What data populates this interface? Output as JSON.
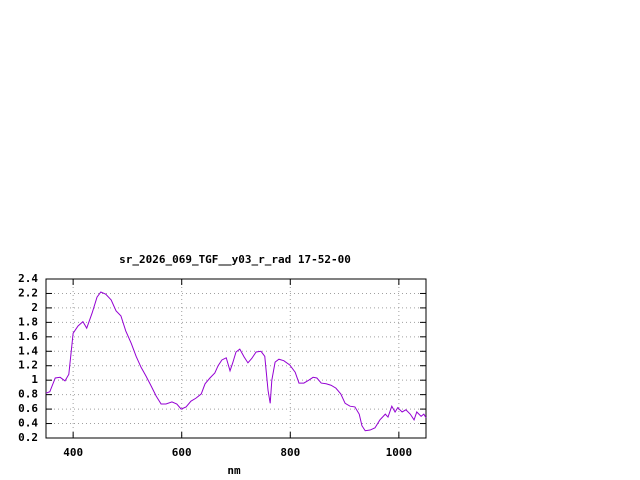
{
  "chart_data": {
    "type": "line",
    "title": "sr_2026_069_TGF__y03_r_rad 17-52-00",
    "x_label": "nm",
    "x": [
      350,
      357,
      367,
      376,
      385,
      392,
      400,
      409,
      418,
      425,
      435,
      444,
      451,
      460,
      470,
      479,
      488,
      497,
      507,
      516,
      525,
      534,
      543,
      553,
      562,
      571,
      582,
      591,
      599,
      608,
      617,
      626,
      636,
      643,
      652,
      661,
      667,
      674,
      682,
      689,
      694,
      700,
      707,
      715,
      722,
      729,
      737,
      746,
      753,
      759,
      763,
      766,
      772,
      779,
      788,
      799,
      809,
      816,
      825,
      834,
      842,
      849,
      857,
      866,
      875,
      884,
      893,
      901,
      910,
      919,
      927,
      932,
      938,
      947,
      956,
      965,
      975,
      980,
      987,
      993,
      998,
      1006,
      1013,
      1021,
      1028,
      1033,
      1041,
      1046,
      1050
    ],
    "values": [
      0.82,
      0.84,
      1.03,
      1.04,
      0.99,
      1.08,
      1.65,
      1.75,
      1.81,
      1.72,
      1.93,
      2.15,
      2.22,
      2.19,
      2.11,
      1.96,
      1.89,
      1.68,
      1.51,
      1.33,
      1.18,
      1.06,
      0.93,
      0.78,
      0.67,
      0.67,
      0.7,
      0.67,
      0.6,
      0.63,
      0.71,
      0.75,
      0.81,
      0.95,
      1.03,
      1.1,
      1.2,
      1.28,
      1.31,
      1.13,
      1.24,
      1.39,
      1.43,
      1.32,
      1.24,
      1.3,
      1.39,
      1.4,
      1.33,
      0.86,
      0.68,
      1.0,
      1.25,
      1.29,
      1.27,
      1.21,
      1.11,
      0.96,
      0.96,
      1.0,
      1.04,
      1.03,
      0.96,
      0.95,
      0.93,
      0.89,
      0.81,
      0.68,
      0.64,
      0.63,
      0.53,
      0.37,
      0.3,
      0.31,
      0.34,
      0.45,
      0.53,
      0.49,
      0.64,
      0.56,
      0.62,
      0.56,
      0.59,
      0.53,
      0.45,
      0.56,
      0.5,
      0.53,
      0.48
    ],
    "color": "#9400d3",
    "xlim": [
      350,
      1050
    ],
    "xticks": [
      400,
      600,
      800,
      1000
    ],
    "ylim": [
      0.2,
      2.4
    ],
    "yticks": [
      0.2,
      0.4,
      0.6,
      0.8,
      1,
      1.2,
      1.4,
      1.6,
      1.8,
      2,
      2.2,
      2.4
    ],
    "grid": true
  }
}
